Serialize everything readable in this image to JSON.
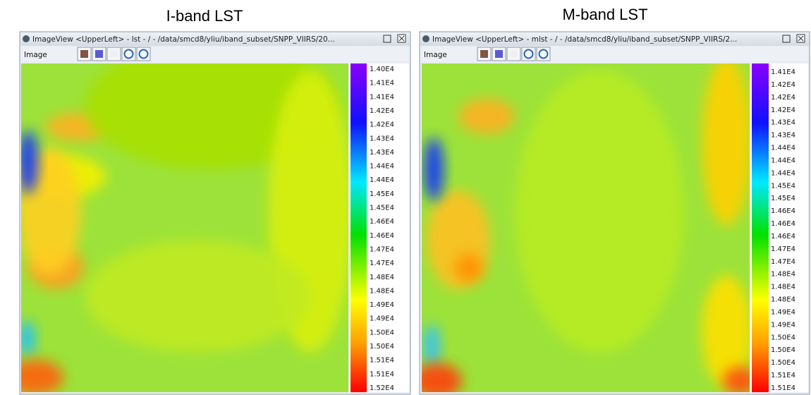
{
  "panels": [
    {
      "heading": "I-band LST",
      "window_title": "ImageView <UpperLeft>  -  lst  - / - /data/smcd8/yliu/iband_subset/SNPP_VIIRS/20...",
      "menu": "Image",
      "colorbar_labels": [
        "1.40E4",
        "1.41E4",
        "1.41E4",
        "1.42E4",
        "1.42E4",
        "1.43E4",
        "1.43E4",
        "1.44E4",
        "1.44E4",
        "1.45E4",
        "1.45E4",
        "1.46E4",
        "1.46E4",
        "1.47E4",
        "1.47E4",
        "1.48E4",
        "1.48E4",
        "1.49E4",
        "1.49E4",
        "1.50E4",
        "1.50E4",
        "1.51E4",
        "1.51E4",
        "1.52E4"
      ]
    },
    {
      "heading": "M-band LST",
      "window_title": "ImageView <UpperLeft>  -  mlst  - / - /data/smcd8/yliu/iband_subset/SNPP_VIIRS/2...",
      "menu": "Image",
      "colorbar_labels": [
        "1.41E4",
        "1.42E4",
        "1.42E4",
        "1.42E4",
        "1.43E4",
        "1.43E4",
        "1.44E4",
        "1.44E4",
        "1.44E4",
        "1.45E4",
        "1.45E4",
        "1.46E4",
        "1.46E4",
        "1.46E4",
        "1.47E4",
        "1.47E4",
        "1.48E4",
        "1.48E4",
        "1.48E4",
        "1.49E4",
        "1.49E4",
        "1.50E4",
        "1.50E4",
        "1.50E4",
        "1.51E4",
        "1.51E4"
      ]
    }
  ]
}
